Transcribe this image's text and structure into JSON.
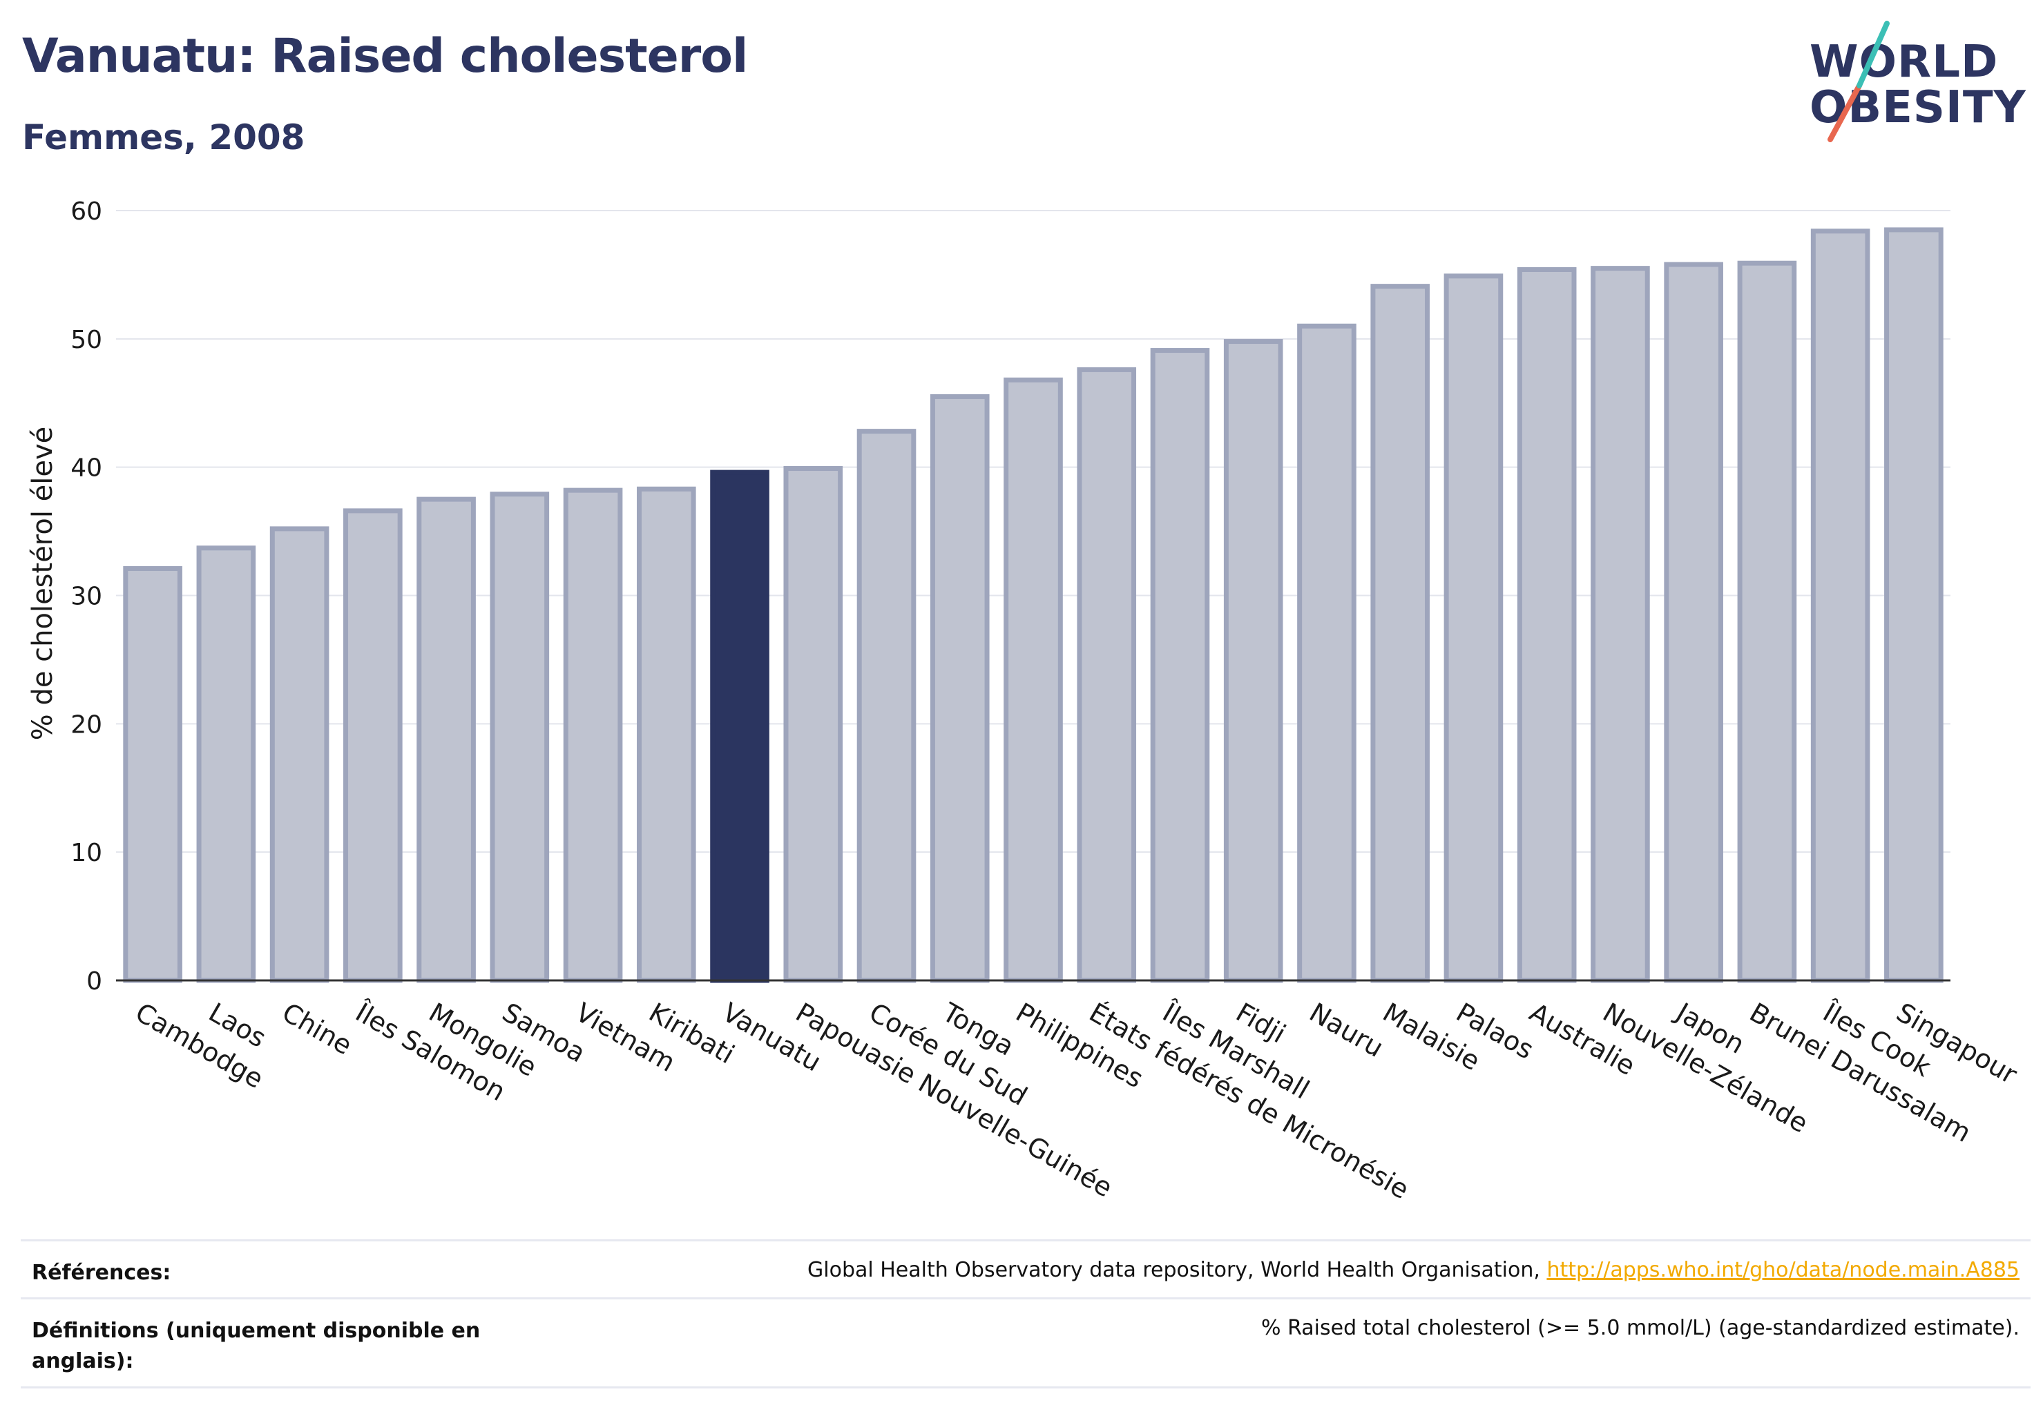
{
  "header": {
    "title": "Vanuatu: Raised cholesterol",
    "subtitle": "Femmes, 2008"
  },
  "logo": {
    "line1": "WORLD",
    "line2": "OBESITY",
    "slash_colors": [
      "#e8674f",
      "#3bbfb5"
    ]
  },
  "colors": {
    "bar_default": "#bfc3d0",
    "bar_border": "#9ea5bc",
    "bar_highlight": "#2b3560",
    "grid": "#e3e5ec",
    "axis": "#333333"
  },
  "chart_data": {
    "type": "bar",
    "ylabel": "% de cholestérol élevé",
    "ylim": [
      0,
      60
    ],
    "yticks": [
      0,
      10,
      20,
      30,
      40,
      50,
      60
    ],
    "grid": true,
    "highlight": "Vanuatu",
    "categories": [
      "Cambodge",
      "Laos",
      "Chine",
      "Îles Salomon",
      "Mongolie",
      "Samoa",
      "Vietnam",
      "Kiribati",
      "Vanuatu",
      "Papouasie Nouvelle-Guinée",
      "Corée du Sud",
      "Tonga",
      "Philippines",
      "États fédérés de Micronésie",
      "Îles Marshall",
      "Fidji",
      "Nauru",
      "Malaisie",
      "Palaos",
      "Australie",
      "Nouvelle-Zélande",
      "Japon",
      "Brunei Darussalam",
      "Îles Cook",
      "Singapour"
    ],
    "values": [
      32.1,
      33.7,
      35.2,
      36.6,
      37.5,
      37.9,
      38.2,
      38.3,
      39.6,
      39.9,
      42.8,
      45.5,
      46.8,
      47.6,
      49.1,
      49.8,
      51.0,
      54.1,
      54.9,
      55.4,
      55.5,
      55.8,
      55.9,
      58.4,
      58.5
    ]
  },
  "footer": {
    "references_label": "Références:",
    "references_text": "Global Health Observatory data repository, World Health Organisation, ",
    "references_link": "http://apps.who.int/gho/data/node.main.A885",
    "definitions_label": "Définitions (uniquement disponible en anglais):",
    "definitions_text": "% Raised total cholesterol (>= 5.0 mmol/L) (age-standardized estimate)."
  }
}
